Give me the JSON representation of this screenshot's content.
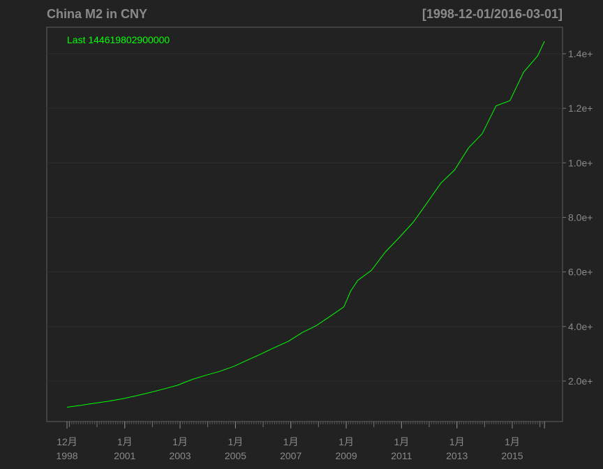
{
  "chart_data": {
    "type": "line",
    "title": "China M2 in CNY",
    "date_range": "[1998-12-01/2016-03-01]",
    "legend_text": "Last 144619802900000",
    "line_color": "#00ff00",
    "background_color": "#222222",
    "text_color": "#8a8a8a",
    "grid": true,
    "y_scale": "linear",
    "ylim": [
      5000000000000,
      150000000000000
    ],
    "yticks": [
      {
        "value": 20000000000000,
        "label": "2.0e+"
      },
      {
        "value": 40000000000000,
        "label": "4.0e+"
      },
      {
        "value": 60000000000000,
        "label": "6.0e+"
      },
      {
        "value": 80000000000000,
        "label": "8.0e+"
      },
      {
        "value": 100000000000000,
        "label": "1.0e+"
      },
      {
        "value": 120000000000000,
        "label": "1.2e+"
      },
      {
        "value": 140000000000000,
        "label": "1.4e+"
      }
    ],
    "xticks": [
      {
        "date": "1998-12-01",
        "line1": "12月",
        "line2": "1998"
      },
      {
        "date": "2001-01-01",
        "line1": "1月",
        "line2": "2001"
      },
      {
        "date": "2003-01-01",
        "line1": "1月",
        "line2": "2003"
      },
      {
        "date": "2005-01-01",
        "line1": "1月",
        "line2": "2005"
      },
      {
        "date": "2007-01-01",
        "line1": "1月",
        "line2": "2007"
      },
      {
        "date": "2009-01-01",
        "line1": "1月",
        "line2": "2009"
      },
      {
        "date": "2011-01-01",
        "line1": "1月",
        "line2": "2011"
      },
      {
        "date": "2013-01-01",
        "line1": "1月",
        "line2": "2013"
      },
      {
        "date": "2015-01-01",
        "line1": "1月",
        "line2": "2015"
      }
    ],
    "series": [
      {
        "name": "China M2",
        "points": [
          [
            "1998-12-01",
            10400000000000
          ],
          [
            "1999-06-01",
            11100000000000
          ],
          [
            "1999-12-01",
            11900000000000
          ],
          [
            "2000-06-01",
            12600000000000
          ],
          [
            "2000-12-01",
            13500000000000
          ],
          [
            "2001-06-01",
            14600000000000
          ],
          [
            "2001-12-01",
            15800000000000
          ],
          [
            "2002-06-01",
            17100000000000
          ],
          [
            "2002-12-01",
            18500000000000
          ],
          [
            "2003-06-01",
            20500000000000
          ],
          [
            "2003-12-01",
            22100000000000
          ],
          [
            "2004-06-01",
            23500000000000
          ],
          [
            "2004-12-01",
            25300000000000
          ],
          [
            "2005-06-01",
            27600000000000
          ],
          [
            "2005-12-01",
            29900000000000
          ],
          [
            "2006-06-01",
            32300000000000
          ],
          [
            "2006-12-01",
            34600000000000
          ],
          [
            "2007-06-01",
            37800000000000
          ],
          [
            "2007-12-01",
            40300000000000
          ],
          [
            "2008-06-01",
            43700000000000
          ],
          [
            "2008-12-01",
            47200000000000
          ],
          [
            "2009-03-01",
            53000000000000
          ],
          [
            "2009-06-01",
            56900000000000
          ],
          [
            "2009-12-01",
            60600000000000
          ],
          [
            "2010-06-01",
            67300000000000
          ],
          [
            "2010-12-01",
            72600000000000
          ],
          [
            "2011-06-01",
            78100000000000
          ],
          [
            "2011-12-01",
            85200000000000
          ],
          [
            "2012-06-01",
            92500000000000
          ],
          [
            "2012-12-01",
            97400000000000
          ],
          [
            "2013-06-01",
            105400000000000
          ],
          [
            "2013-12-01",
            110700000000000
          ],
          [
            "2014-06-01",
            120900000000000
          ],
          [
            "2014-12-01",
            122800000000000
          ],
          [
            "2015-06-01",
            133300000000000
          ],
          [
            "2015-12-01",
            139200000000000
          ],
          [
            "2016-03-01",
            144600000000000
          ]
        ]
      }
    ]
  }
}
